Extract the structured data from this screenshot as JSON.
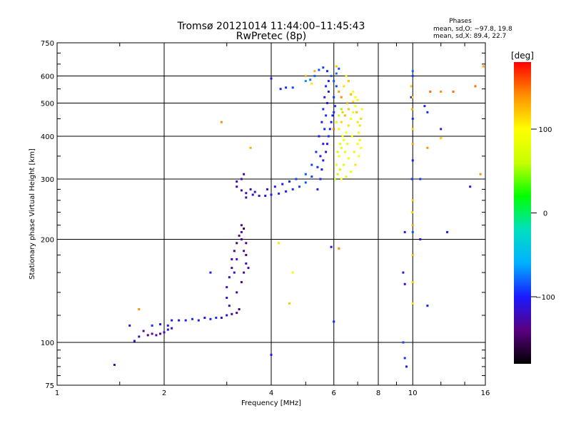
{
  "header": {
    "title_line1": "Tromsø 20121014 11:44:00–11:45:43",
    "title_line2": "RwPretec (8p)",
    "stats_title": "Phases",
    "stats_o": "mean, sd,O: −97.8, 19.8",
    "stats_x": "mean, sd,X:  89.4, 22.7"
  },
  "colorbar": {
    "unit": "[deg]",
    "min": -180,
    "max": 180,
    "ticks": [
      {
        "label": "100",
        "value": 100
      },
      {
        "label": "0",
        "value": 0
      },
      {
        "label": "−100",
        "value": -100
      }
    ],
    "colors": [
      "#000000",
      "#5a0080",
      "#1a1aff",
      "#00b0ff",
      "#00e0c0",
      "#00ff00",
      "#c8ff00",
      "#ffff00",
      "#ff9000",
      "#ff0000"
    ]
  },
  "chart_data": {
    "type": "scatter",
    "title": "Tromsø 20121014 11:44:00–11:45:43",
    "subtitle": "RwPretec (8p)",
    "xlabel": "Frequency [MHz]",
    "ylabel": "Stationary phase Virtual Height [km]",
    "x_scale": "log",
    "y_scale": "log",
    "xlim": [
      1,
      16
    ],
    "ylim": [
      75,
      750
    ],
    "grid": true,
    "xticks": [
      {
        "label": "1",
        "value": 1
      },
      {
        "label": "2",
        "value": 2
      },
      {
        "label": "4",
        "value": 4
      },
      {
        "label": "6",
        "value": 6
      },
      {
        "label": "8",
        "value": 8
      },
      {
        "label": "10",
        "value": 10
      },
      {
        "label": "16",
        "value": 16
      }
    ],
    "yticks": [
      {
        "label": "75",
        "value": 75
      },
      {
        "label": "100",
        "value": 100
      },
      {
        "label": "200",
        "value": 200
      },
      {
        "label": "300",
        "value": 300
      },
      {
        "label": "400",
        "value": 400
      },
      {
        "label": "500",
        "value": 500
      },
      {
        "label": "600",
        "value": 600
      },
      {
        "label": "750",
        "value": 750
      }
    ],
    "color_variable": "phase [deg]",
    "series": [
      {
        "name": "O",
        "points": [
          [
            1.45,
            86,
            -120
          ],
          [
            1.6,
            112,
            -115
          ],
          [
            1.65,
            101,
            -110
          ],
          [
            1.7,
            104,
            -120
          ],
          [
            1.75,
            108,
            -130
          ],
          [
            1.8,
            105,
            -140
          ],
          [
            1.85,
            106,
            -135
          ],
          [
            1.9,
            105,
            -125
          ],
          [
            1.95,
            106,
            -130
          ],
          [
            2.0,
            107,
            -120
          ],
          [
            2.05,
            109,
            -115
          ],
          [
            2.1,
            110,
            -110
          ],
          [
            2.05,
            112,
            -100
          ],
          [
            1.95,
            113,
            -105
          ],
          [
            1.85,
            112,
            -95
          ],
          [
            2.1,
            116,
            -100
          ],
          [
            2.2,
            116,
            -110
          ],
          [
            2.3,
            116,
            -100
          ],
          [
            2.4,
            117,
            -95
          ],
          [
            2.5,
            116,
            -100
          ],
          [
            2.6,
            118,
            -105
          ],
          [
            2.7,
            117,
            -100
          ],
          [
            2.8,
            118,
            -95
          ],
          [
            2.9,
            118,
            -110
          ],
          [
            3.0,
            120,
            -120
          ],
          [
            3.1,
            121,
            -130
          ],
          [
            3.2,
            122,
            -140
          ],
          [
            3.25,
            125,
            -145
          ],
          [
            3.05,
            128,
            -120
          ],
          [
            3.0,
            135,
            -115
          ],
          [
            3.0,
            145,
            -120
          ],
          [
            3.05,
            155,
            -125
          ],
          [
            3.1,
            165,
            -130
          ],
          [
            3.1,
            175,
            -135
          ],
          [
            3.15,
            185,
            -140
          ],
          [
            3.2,
            195,
            -145
          ],
          [
            3.25,
            205,
            -140
          ],
          [
            3.3,
            200,
            -135
          ],
          [
            3.35,
            185,
            -125
          ],
          [
            3.4,
            170,
            -120
          ],
          [
            3.35,
            160,
            -130
          ],
          [
            3.3,
            150,
            -135
          ],
          [
            3.2,
            140,
            -130
          ],
          [
            3.4,
            195,
            -140
          ],
          [
            3.35,
            215,
            -150
          ],
          [
            3.45,
            165,
            -125
          ],
          [
            3.2,
            175,
            -115
          ],
          [
            3.15,
            160,
            -120
          ],
          [
            3.2,
            295,
            -120
          ],
          [
            3.2,
            285,
            -130
          ],
          [
            3.3,
            278,
            -125
          ],
          [
            3.4,
            273,
            -120
          ],
          [
            3.55,
            270,
            -115
          ],
          [
            3.7,
            268,
            -110
          ],
          [
            3.85,
            268,
            -105
          ],
          [
            4.0,
            270,
            -100
          ],
          [
            4.2,
            272,
            -95
          ],
          [
            4.4,
            276,
            -100
          ],
          [
            4.6,
            280,
            -95
          ],
          [
            4.8,
            285,
            -90
          ],
          [
            5.0,
            293,
            -85
          ],
          [
            5.2,
            305,
            -90
          ],
          [
            5.4,
            325,
            -95
          ],
          [
            5.5,
            350,
            -100
          ],
          [
            5.6,
            380,
            -105
          ],
          [
            5.65,
            420,
            -100
          ],
          [
            5.7,
            460,
            -95
          ],
          [
            5.75,
            500,
            -100
          ],
          [
            5.8,
            540,
            -105
          ],
          [
            5.8,
            580,
            -100
          ],
          [
            5.75,
            620,
            -95
          ],
          [
            5.6,
            635,
            -90
          ],
          [
            5.45,
            625,
            -85
          ],
          [
            5.3,
            600,
            -80
          ],
          [
            5.15,
            585,
            -75
          ],
          [
            5.0,
            580,
            -70
          ],
          [
            4.6,
            555,
            -90
          ],
          [
            4.4,
            555,
            -95
          ],
          [
            4.25,
            550,
            -100
          ],
          [
            3.4,
            265,
            -120
          ],
          [
            3.3,
            300,
            -125
          ],
          [
            3.35,
            310,
            -130
          ],
          [
            3.5,
            280,
            -120
          ],
          [
            3.6,
            275,
            -115
          ],
          [
            3.9,
            280,
            -110
          ],
          [
            4.1,
            285,
            -105
          ],
          [
            4.3,
            290,
            -100
          ],
          [
            4.5,
            295,
            -95
          ],
          [
            4.7,
            300,
            -90
          ],
          [
            5.0,
            310,
            -85
          ],
          [
            5.2,
            330,
            -90
          ],
          [
            5.35,
            360,
            -95
          ],
          [
            5.45,
            400,
            -100
          ],
          [
            5.55,
            440,
            -105
          ],
          [
            5.6,
            480,
            -95
          ],
          [
            5.65,
            520,
            -100
          ],
          [
            5.7,
            560,
            -95
          ],
          [
            5.4,
            280,
            -100
          ],
          [
            5.5,
            300,
            -95
          ],
          [
            5.55,
            320,
            -100
          ],
          [
            5.6,
            340,
            -105
          ],
          [
            5.7,
            360,
            -110
          ],
          [
            5.75,
            380,
            -100
          ],
          [
            5.8,
            400,
            -95
          ],
          [
            5.85,
            420,
            -100
          ],
          [
            5.9,
            440,
            -105
          ],
          [
            5.95,
            460,
            -100
          ],
          [
            5.9,
            600,
            -80
          ],
          [
            6.0,
            580,
            -85
          ],
          [
            6.1,
            560,
            -90
          ],
          [
            6.0,
            520,
            -95
          ],
          [
            6.05,
            490,
            -90
          ],
          [
            6.0,
            470,
            -95
          ],
          [
            6.1,
            610,
            -80
          ],
          [
            6.2,
            630,
            -85
          ],
          [
            4.0,
            92,
            -100
          ],
          [
            4.0,
            590,
            -110
          ],
          [
            5.9,
            190,
            -110
          ],
          [
            6.0,
            115,
            -100
          ],
          [
            9.5,
            210,
            -100
          ],
          [
            9.4,
            160,
            -110
          ],
          [
            9.5,
            148,
            -120
          ],
          [
            9.4,
            100,
            -90
          ],
          [
            9.5,
            90,
            -95
          ],
          [
            9.6,
            85,
            -100
          ],
          [
            10.0,
            620,
            -80
          ],
          [
            10.0,
            600,
            -90
          ],
          [
            9.9,
            520,
            -100
          ],
          [
            10.0,
            450,
            -95
          ],
          [
            10.0,
            340,
            -100
          ],
          [
            9.95,
            300,
            -90
          ],
          [
            10.0,
            210,
            -85
          ],
          [
            10.5,
            300,
            -95
          ],
          [
            10.5,
            200,
            -110
          ],
          [
            11.0,
            470,
            -95
          ],
          [
            10.8,
            490,
            -100
          ],
          [
            12.0,
            420,
            -110
          ],
          [
            12.5,
            210,
            -100
          ],
          [
            14.5,
            285,
            -110
          ],
          [
            11.0,
            128,
            -100
          ],
          [
            3.3,
            210,
            -125
          ],
          [
            3.3,
            220,
            -130
          ],
          [
            3.4,
            180,
            -140
          ],
          [
            2.7,
            160,
            -100
          ]
        ]
      },
      {
        "name": "X",
        "points": [
          [
            6.1,
            330,
            90
          ],
          [
            6.2,
            350,
            100
          ],
          [
            6.3,
            370,
            80
          ],
          [
            6.4,
            390,
            90
          ],
          [
            6.5,
            410,
            100
          ],
          [
            6.6,
            430,
            110
          ],
          [
            6.7,
            450,
            95
          ],
          [
            6.8,
            470,
            85
          ],
          [
            6.9,
            490,
            100
          ],
          [
            6.95,
            470,
            120
          ],
          [
            7.0,
            440,
            110
          ],
          [
            7.05,
            410,
            90
          ],
          [
            7.1,
            390,
            80
          ],
          [
            7.15,
            370,
            95
          ],
          [
            7.05,
            350,
            100
          ],
          [
            6.9,
            330,
            110
          ],
          [
            6.7,
            315,
            90
          ],
          [
            6.5,
            305,
            85
          ],
          [
            6.3,
            300,
            95
          ],
          [
            6.2,
            420,
            105
          ],
          [
            6.3,
            440,
            115
          ],
          [
            6.45,
            460,
            125
          ],
          [
            6.6,
            480,
            120
          ],
          [
            6.8,
            505,
            110
          ],
          [
            6.9,
            520,
            100
          ],
          [
            7.0,
            510,
            95
          ],
          [
            6.75,
            400,
            90
          ],
          [
            6.55,
            380,
            85
          ],
          [
            6.45,
            360,
            80
          ],
          [
            6.6,
            345,
            95
          ],
          [
            6.85,
            360,
            105
          ],
          [
            7.0,
            380,
            100
          ],
          [
            7.1,
            430,
            110
          ],
          [
            7.15,
            450,
            115
          ],
          [
            7.2,
            480,
            90
          ],
          [
            6.4,
            330,
            75
          ],
          [
            6.25,
            320,
            70
          ],
          [
            6.15,
            310,
            60
          ],
          [
            6.05,
            300,
            55
          ],
          [
            6.35,
            470,
            120
          ],
          [
            6.55,
            500,
            130
          ],
          [
            6.7,
            530,
            125
          ],
          [
            6.3,
            520,
            140
          ],
          [
            6.2,
            540,
            135
          ],
          [
            6.4,
            560,
            110
          ],
          [
            6.6,
            580,
            120
          ],
          [
            6.5,
            600,
            100
          ],
          [
            6.8,
            540,
            95
          ],
          [
            6.1,
            640,
            120
          ],
          [
            5.3,
            620,
            130
          ],
          [
            5.0,
            600,
            125
          ],
          [
            5.2,
            570,
            110
          ],
          [
            2.9,
            440,
            140
          ],
          [
            3.5,
            370,
            130
          ],
          [
            4.2,
            195,
            110
          ],
          [
            4.5,
            130,
            120
          ],
          [
            4.6,
            160,
            90
          ],
          [
            6.2,
            188,
            140
          ],
          [
            9.9,
            560,
            120
          ],
          [
            10.0,
            520,
            110
          ],
          [
            9.95,
            480,
            125
          ],
          [
            10.0,
            420,
            115
          ],
          [
            10.0,
            380,
            130
          ],
          [
            10.0,
            260,
            120
          ],
          [
            9.95,
            240,
            110
          ],
          [
            10.0,
            180,
            125
          ],
          [
            10.0,
            150,
            120
          ],
          [
            10.0,
            130,
            110
          ],
          [
            11.0,
            370,
            140
          ],
          [
            11.2,
            540,
            150
          ],
          [
            12.0,
            540,
            140
          ],
          [
            12.0,
            395,
            120
          ],
          [
            13.0,
            540,
            150
          ],
          [
            10.0,
            220,
            130
          ],
          [
            15.0,
            560,
            150
          ],
          [
            15.5,
            310,
            140
          ],
          [
            15.8,
            640,
            130
          ],
          [
            1.7,
            125,
            140
          ],
          [
            6.0,
            420,
            150
          ],
          [
            6.1,
            440,
            70
          ],
          [
            6.2,
            460,
            60
          ],
          [
            6.3,
            480,
            50
          ],
          [
            6.15,
            360,
            65
          ],
          [
            6.25,
            380,
            75
          ],
          [
            6.35,
            400,
            85
          ]
        ]
      }
    ]
  }
}
